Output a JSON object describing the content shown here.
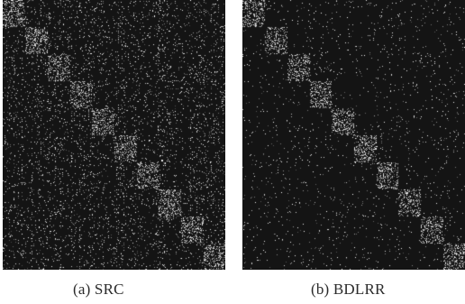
{
  "figure": {
    "panels": [
      {
        "caption": "(a) SRC"
      },
      {
        "caption": "(b) BDLRR"
      }
    ]
  }
}
